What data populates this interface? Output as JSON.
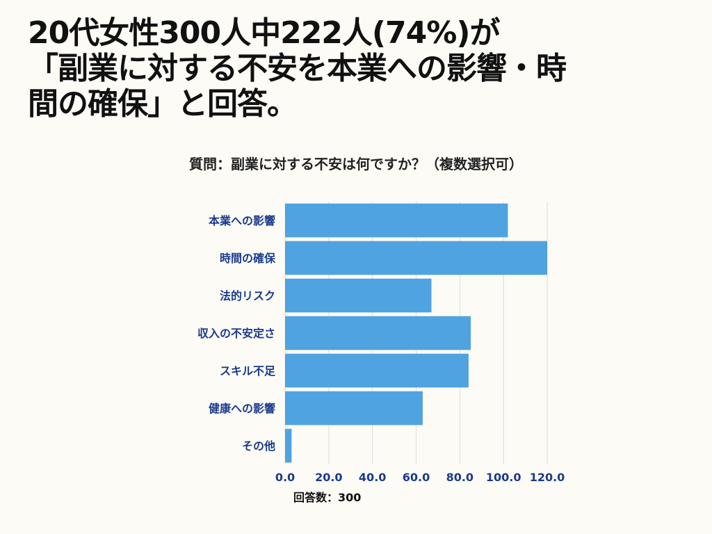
{
  "headline": {
    "line1": "20代女性300人中222人(74%)が",
    "line2": "「副業に対する不安を本業への影響・時",
    "line3": "間の確保」と回答。"
  },
  "chart_data": {
    "type": "bar",
    "orientation": "horizontal",
    "title": "質問：副業に対する不安は何ですか？（複数選択可）",
    "categories": [
      "本業への影響",
      "時間の確保",
      "法的リスク",
      "収入の不安定さ",
      "スキル不足",
      "健康への影響",
      "その他"
    ],
    "values": [
      102,
      120,
      67,
      85,
      84,
      63,
      3
    ],
    "xlim": [
      0,
      120
    ],
    "xticks": [
      "0.0",
      "20.0",
      "40.0",
      "60.0",
      "80.0",
      "100.0",
      "120.0"
    ],
    "grid": true,
    "bar_color": "#4fa3e0",
    "label_color": "#1a3a8c",
    "footer": "回答数：300"
  }
}
